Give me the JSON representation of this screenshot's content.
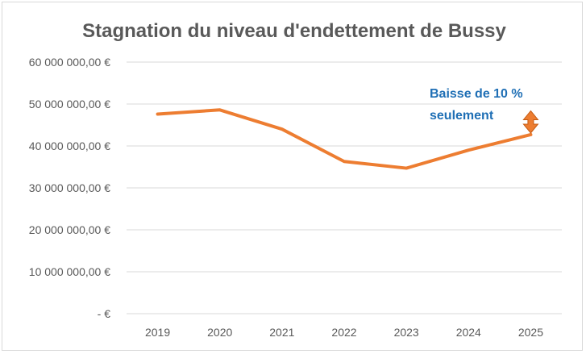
{
  "chart_data": {
    "type": "line",
    "title": "Stagnation du niveau d'endettement de Bussy",
    "xlabel": "",
    "ylabel": "",
    "categories": [
      "2019",
      "2020",
      "2021",
      "2022",
      "2023",
      "2024",
      "2025"
    ],
    "series": [
      {
        "values": [
          47600000,
          48600000,
          44000000,
          36300000,
          34700000,
          39000000,
          42700000
        ],
        "color": "#ed7d31"
      }
    ],
    "ylim": [
      0,
      60000000
    ],
    "yticks": [
      0,
      10000000,
      20000000,
      30000000,
      40000000,
      50000000,
      60000000
    ],
    "ytick_labels": [
      "-   €",
      "10 000 000,00 €",
      "20 000 000,00 €",
      "30 000 000,00 €",
      "40 000 000,00 €",
      "50 000 000,00 €",
      "60 000 000,00 €"
    ],
    "grid": true,
    "gridline_color": "#d9d9d9",
    "legend": "none",
    "annotation": {
      "line1": "Baisse de 10 %",
      "line2": "seulement",
      "color": "#1f6fb5",
      "arrow_color": "#ed7d31",
      "arrow_from": 47600000,
      "arrow_to": 42700000,
      "arrow_category": "2025"
    }
  }
}
